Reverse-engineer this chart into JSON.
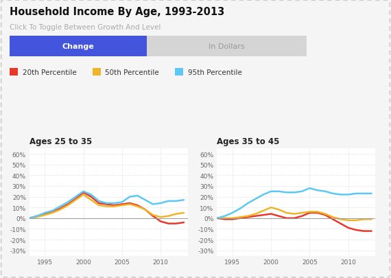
{
  "title": "Household Income By Age, 1993-2013",
  "subtitle": "Click To Toggle Between Growth And Level",
  "btn_change": "Change",
  "btn_dollars": "In Dollars",
  "legend": [
    {
      "label": "20th Percentile",
      "color": "#e8382a"
    },
    {
      "label": "50th Percentile",
      "color": "#f0b429"
    },
    {
      "label": "95th Percentile",
      "color": "#5bc8f5"
    }
  ],
  "panel1_title": "Ages 25 to 35",
  "panel2_title": "Ages 35 to 45",
  "years": [
    1993,
    1994,
    1995,
    1996,
    1997,
    1998,
    1999,
    2000,
    2001,
    2002,
    2003,
    2004,
    2005,
    2006,
    2007,
    2008,
    2009,
    2010,
    2011,
    2012,
    2013
  ],
  "panel1": {
    "p20": [
      0,
      2,
      4,
      6,
      9,
      13,
      18,
      24,
      20,
      14,
      13,
      12,
      13,
      14,
      12,
      8,
      2,
      -3,
      -5,
      -5,
      -4
    ],
    "p50": [
      0,
      1,
      3,
      5,
      8,
      12,
      17,
      22,
      17,
      12,
      11,
      11,
      12,
      13,
      11,
      8,
      3,
      1,
      2,
      4,
      5
    ],
    "p95": [
      0,
      2,
      5,
      7,
      11,
      15,
      20,
      25,
      22,
      16,
      14,
      14,
      15,
      20,
      21,
      17,
      13,
      14,
      16,
      16,
      17
    ]
  },
  "panel2": {
    "p20": [
      0,
      -1,
      -1,
      0,
      1,
      2,
      3,
      4,
      2,
      0,
      0,
      2,
      5,
      5,
      3,
      -1,
      -5,
      -9,
      -11,
      -12,
      -12
    ],
    "p50": [
      0,
      0,
      0,
      1,
      2,
      4,
      7,
      10,
      8,
      5,
      4,
      5,
      6,
      6,
      4,
      1,
      -1,
      -2,
      -2,
      -1,
      -1
    ],
    "p95": [
      0,
      2,
      5,
      9,
      14,
      18,
      22,
      25,
      25,
      24,
      24,
      25,
      28,
      26,
      25,
      23,
      22,
      22,
      23,
      23,
      23
    ]
  },
  "ylim": [
    -35,
    65
  ],
  "yticks": [
    -30,
    -20,
    -10,
    0,
    10,
    20,
    30,
    40,
    50,
    60
  ],
  "xticks": [
    1995,
    2000,
    2005,
    2010
  ],
  "bg_color": "#f5f5f5",
  "plot_bg": "#ffffff",
  "grid_color": "#cccccc",
  "line_width": 1.8,
  "btn_change_bg": "#4455dd",
  "btn_change_fg": "#ffffff",
  "btn_dollars_bg": "#d5d5d5",
  "btn_dollars_fg": "#999999",
  "outer_border_color": "#cccccc"
}
